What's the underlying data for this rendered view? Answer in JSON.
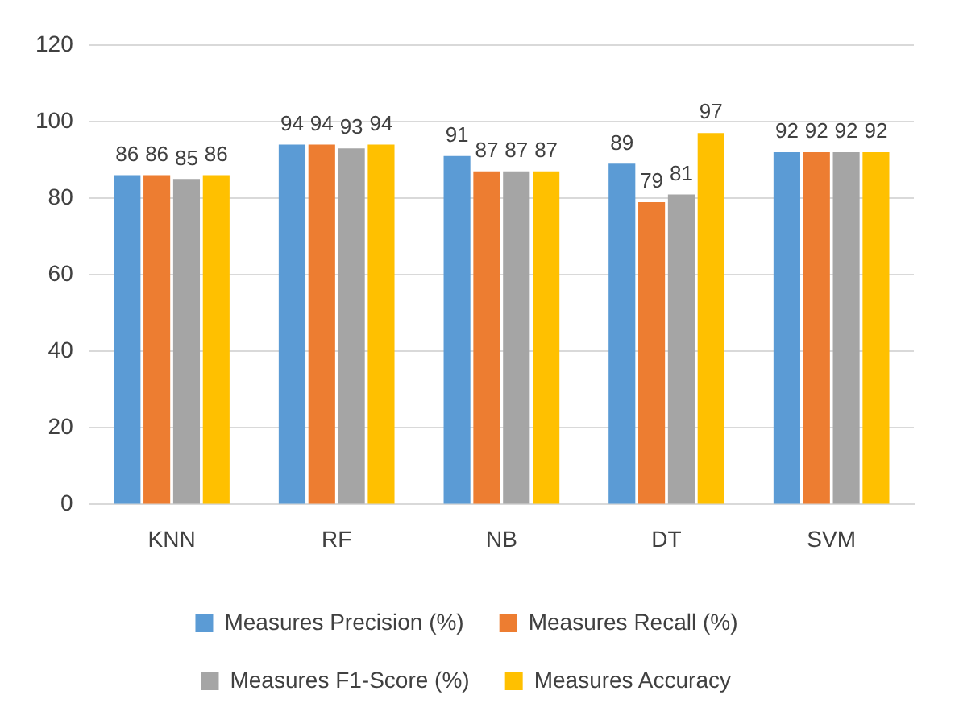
{
  "chart_data": {
    "type": "bar",
    "categories": [
      "KNN",
      "RF",
      "NB",
      "DT",
      "SVM"
    ],
    "series": [
      {
        "name": "Measures Precision (%)",
        "color": "#5b9bd5",
        "values": [
          86,
          94,
          91,
          89,
          92
        ]
      },
      {
        "name": "Measures Recall (%)",
        "color": "#ed7d31",
        "values": [
          86,
          94,
          87,
          79,
          92
        ]
      },
      {
        "name": "Measures F1-Score (%)",
        "color": "#a5a5a5",
        "values": [
          85,
          93,
          87,
          81,
          92
        ]
      },
      {
        "name": "Measures Accuracy",
        "color": "#ffc000",
        "values": [
          86,
          94,
          87,
          97,
          92
        ]
      }
    ],
    "ylim": [
      0,
      120
    ],
    "yticks": [
      0,
      20,
      40,
      60,
      80,
      100,
      120
    ],
    "grid": "y",
    "legend": "bottom",
    "data_labels": true
  }
}
